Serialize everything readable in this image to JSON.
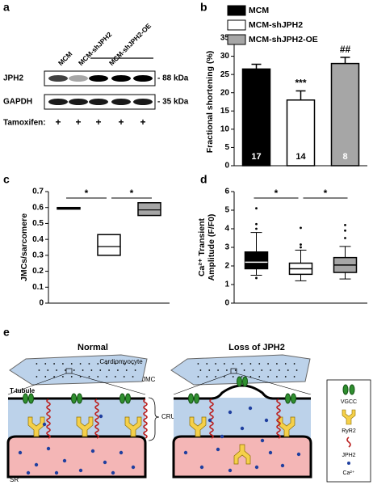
{
  "blot": {
    "panel": "a",
    "lanes": [
      "MCM",
      "MCM-shJPH2",
      "MCM-shJPH2-OE"
    ],
    "rows": [
      {
        "label": "JPH2",
        "size": "- 88 kDa"
      },
      {
        "label": "GAPDH",
        "size": "- 35 kDa"
      }
    ],
    "treatment": {
      "label": "Tamoxifen:",
      "marks": [
        "+",
        "+",
        "+",
        "+",
        "+"
      ]
    }
  },
  "chart_data": [
    {
      "type": "bar",
      "panel": "b",
      "ylabel": [
        "Fractional shortening (%)"
      ],
      "categories": [
        "MCM",
        "MCM-shJPH2",
        "MCM-shJPH2-OE"
      ],
      "values": [
        26.5,
        18,
        28
      ],
      "errors": [
        1.3,
        2.5,
        1.7
      ],
      "colors": [
        "#000000",
        "#ffffff",
        "#a6a6a6"
      ],
      "n": [
        17,
        14,
        8
      ],
      "annotations": {
        "MCM-shJPH2": "***",
        "MCM-shJPH2-OE": "##"
      },
      "ylim": [
        0,
        35
      ],
      "yticks": [
        0,
        5,
        10,
        15,
        20,
        25,
        30,
        35
      ]
    },
    {
      "type": "box",
      "panel": "c",
      "ylabel": [
        "JMCs/sarcomere"
      ],
      "boxes": [
        {
          "low": 0.59,
          "median": 0.595,
          "high": 0.6,
          "color": "#ffffff"
        },
        {
          "low": 0.3,
          "median": 0.355,
          "high": 0.43,
          "color": "#ffffff"
        },
        {
          "low": 0.55,
          "median": 0.585,
          "high": 0.63,
          "color": "#a6a6a6"
        }
      ],
      "significance": [
        "*",
        "*"
      ],
      "ylim": [
        0,
        0.7
      ],
      "yticks": [
        0,
        0.1,
        0.2,
        0.3,
        0.4,
        0.5,
        0.6,
        0.7
      ]
    },
    {
      "type": "box",
      "panel": "d",
      "ylabel": [
        "Ca²⁺ Transient",
        "Amplitude (F/F0)"
      ],
      "boxes": [
        {
          "whisker_low": 1.5,
          "q1": 1.85,
          "median": 2.2,
          "q3": 2.75,
          "whisker_high": 3.8,
          "outliers": [
            5.1,
            4.25,
            4.0,
            1.35
          ],
          "color": "#000000"
        },
        {
          "whisker_low": 1.2,
          "q1": 1.55,
          "median": 1.85,
          "q3": 2.15,
          "whisker_high": 2.85,
          "outliers": [
            4.05,
            3.15,
            3.0
          ],
          "color": "#ffffff"
        },
        {
          "whisker_low": 1.3,
          "q1": 1.65,
          "median": 2.05,
          "q3": 2.45,
          "whisker_high": 3.05,
          "outliers": [
            4.2,
            3.9,
            3.5
          ],
          "color": "#a6a6a6"
        }
      ],
      "significance": [
        "*",
        "*"
      ],
      "ylim": [
        0,
        6
      ],
      "yticks": [
        0,
        1,
        2,
        3,
        4,
        5,
        6
      ]
    }
  ],
  "diagram": {
    "panel": "e",
    "normal": "Normal",
    "loss": "Loss of JPH2",
    "cell": "Cardiomyocyte",
    "jmc": "JMC",
    "ttubule": "T-tubule",
    "cru": "CRU",
    "sr": "SR",
    "legend": [
      "VGCC",
      "RyR2",
      "JPH2",
      "Ca²⁺"
    ]
  }
}
